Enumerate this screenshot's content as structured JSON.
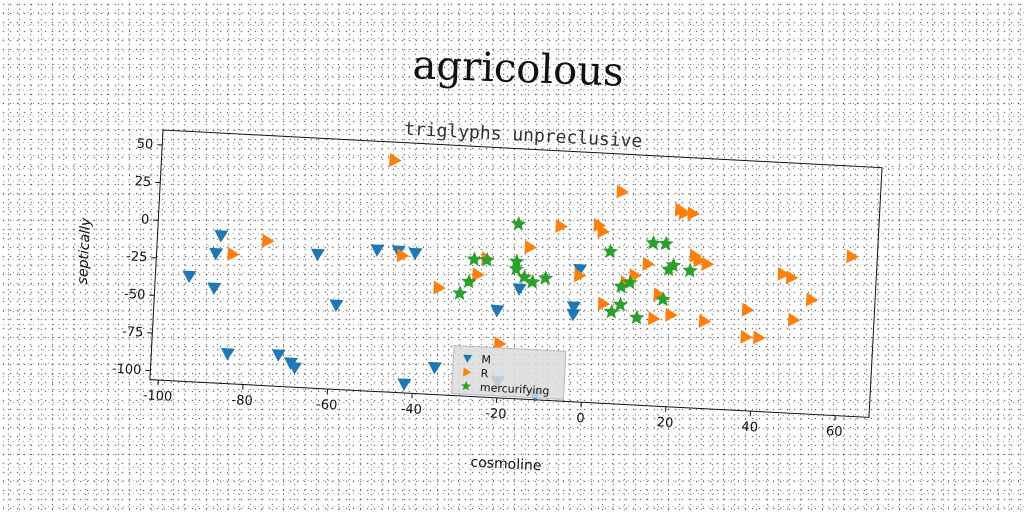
{
  "chart_data": {
    "type": "scatter",
    "title": "agricolous",
    "subtitle": "triglyphs unpreclusive",
    "xlabel": "cosmoline",
    "ylabel": "septically",
    "xlim": [
      -102,
      68
    ],
    "ylim": [
      -106,
      60
    ],
    "xticks": [
      -100,
      -80,
      -60,
      -40,
      -20,
      0,
      20,
      40,
      60
    ],
    "yticks": [
      50,
      25,
      0,
      -25,
      -50,
      -75,
      -100
    ],
    "legend_position": "bottom-center",
    "series": [
      {
        "name": "M",
        "marker": "triangle-down",
        "color": "#1f77b4",
        "points": [
          [
            -87,
            -8
          ],
          [
            -88,
            -20
          ],
          [
            -94,
            -36
          ],
          [
            -88,
            -43
          ],
          [
            -84,
            -86
          ],
          [
            -72,
            -85
          ],
          [
            -69,
            -90
          ],
          [
            -68,
            -93
          ],
          [
            -64,
            -17
          ],
          [
            -59,
            -50
          ],
          [
            -50,
            -12
          ],
          [
            -45,
            -12
          ],
          [
            -41,
            -13
          ],
          [
            -42,
            -100
          ],
          [
            -35,
            -88
          ],
          [
            -21,
            -48
          ],
          [
            -20,
            -95
          ],
          [
            -16,
            -33
          ],
          [
            -11,
            -103
          ],
          [
            -3,
            -48
          ],
          [
            -3,
            -43
          ],
          [
            -2,
            -18
          ]
        ]
      },
      {
        "name": "R",
        "marker": "triangle-right",
        "color": "#ff7f0e",
        "points": [
          [
            -84,
            -20
          ],
          [
            -76,
            -10
          ],
          [
            -47,
            48
          ],
          [
            -44,
            -15
          ],
          [
            -35,
            -35
          ],
          [
            -26,
            -25
          ],
          [
            -24,
            -14
          ],
          [
            -20,
            -70
          ],
          [
            -14,
            -5
          ],
          [
            -7,
            10
          ],
          [
            -2,
            -22
          ],
          [
            2,
            12
          ],
          [
            3,
            8
          ],
          [
            4,
            -40
          ],
          [
            7,
            35
          ],
          [
            9,
            -25
          ],
          [
            11,
            -20
          ],
          [
            14,
            -12
          ],
          [
            16,
            -48
          ],
          [
            17,
            -32
          ],
          [
            20,
            -45
          ],
          [
            21,
            25
          ],
          [
            22,
            23
          ],
          [
            24,
            23
          ],
          [
            25,
            -5
          ],
          [
            26,
            -8
          ],
          [
            28,
            -10
          ],
          [
            28,
            -48
          ],
          [
            38,
            -39
          ],
          [
            38,
            -57
          ],
          [
            41,
            -57
          ],
          [
            46,
            -14
          ],
          [
            48,
            -16
          ],
          [
            49,
            -44
          ],
          [
            53,
            -30
          ],
          [
            62,
            0
          ]
        ]
      },
      {
        "name": "mercurifying",
        "marker": "star",
        "color": "#2ca02c",
        "points": [
          [
            -30,
            -38
          ],
          [
            -28,
            -30
          ],
          [
            -27,
            -15
          ],
          [
            -24,
            -15
          ],
          [
            -17,
            10
          ],
          [
            -17,
            -15
          ],
          [
            -17,
            -20
          ],
          [
            -15,
            -25
          ],
          [
            -13,
            -28
          ],
          [
            -10,
            -25
          ],
          [
            5,
            -5
          ],
          [
            6,
            -45
          ],
          [
            8,
            -28
          ],
          [
            8,
            -40
          ],
          [
            10,
            -25
          ],
          [
            12,
            -48
          ],
          [
            15,
            2
          ],
          [
            18,
            2
          ],
          [
            18,
            -35
          ],
          [
            19,
            -15
          ],
          [
            20,
            -12
          ],
          [
            24,
            -15
          ]
        ]
      }
    ]
  }
}
